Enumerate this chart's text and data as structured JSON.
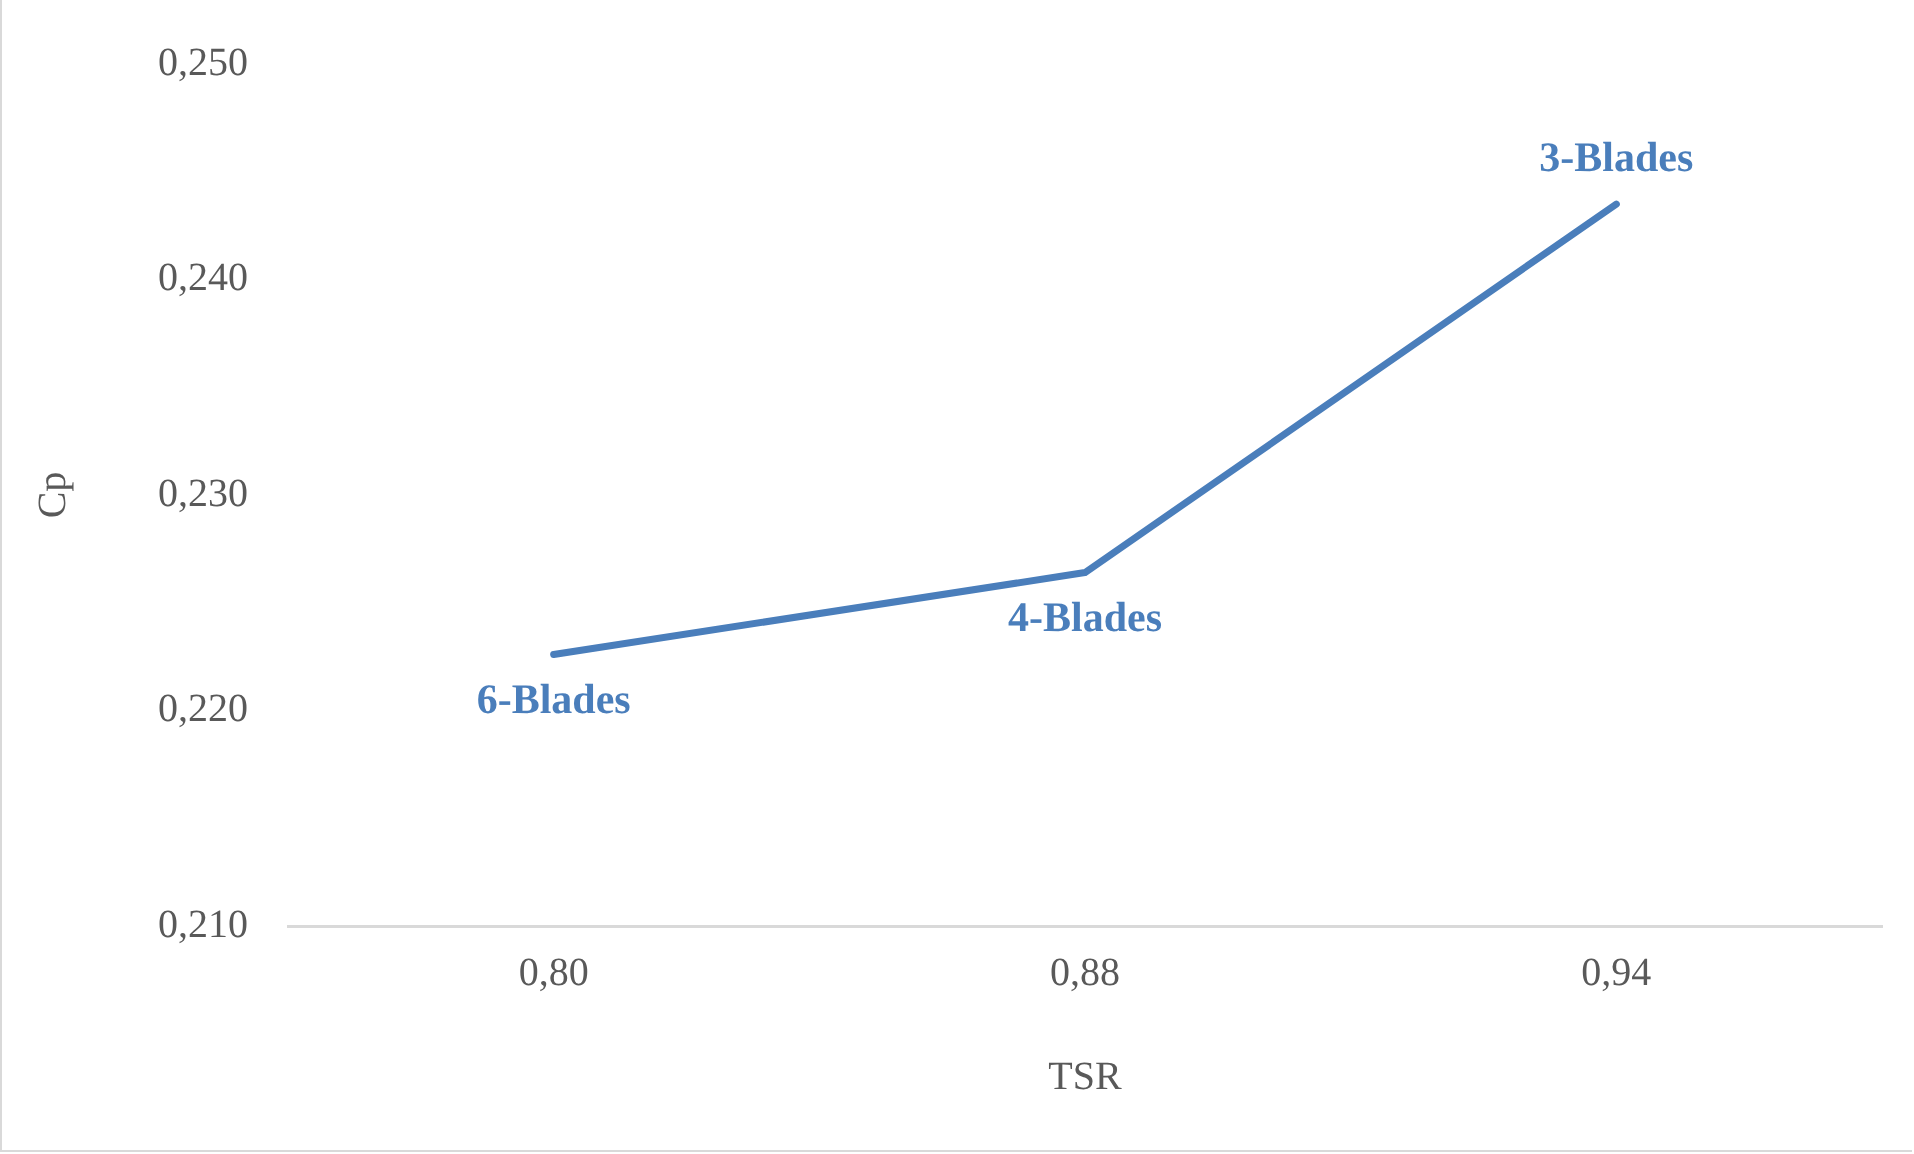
{
  "chart_data": {
    "type": "line",
    "xlabel": "TSR",
    "ylabel": "Cp",
    "categories": [
      "0,80",
      "0,88",
      "0,94"
    ],
    "series": [
      {
        "color": "#4a7ebb",
        "values": [
          0.2226,
          0.2264,
          0.2435
        ]
      }
    ],
    "ylim": [
      0.21,
      0.25
    ],
    "yticks": [
      {
        "value": 0.21,
        "label": "0,210"
      },
      {
        "value": 0.22,
        "label": "0,220"
      },
      {
        "value": 0.23,
        "label": "0,230"
      },
      {
        "value": 0.24,
        "label": "0,240"
      },
      {
        "value": 0.25,
        "label": "0,250"
      }
    ],
    "grid": false,
    "legend": false,
    "line_style": "solid",
    "annotations": [
      {
        "text": "6-Blades",
        "x": "0,80",
        "y": 0.2226
      },
      {
        "text": "4-Blades",
        "x": "0,88",
        "y": 0.2264
      },
      {
        "text": "3-Blades",
        "x": "0,94",
        "y": 0.2435
      }
    ]
  }
}
